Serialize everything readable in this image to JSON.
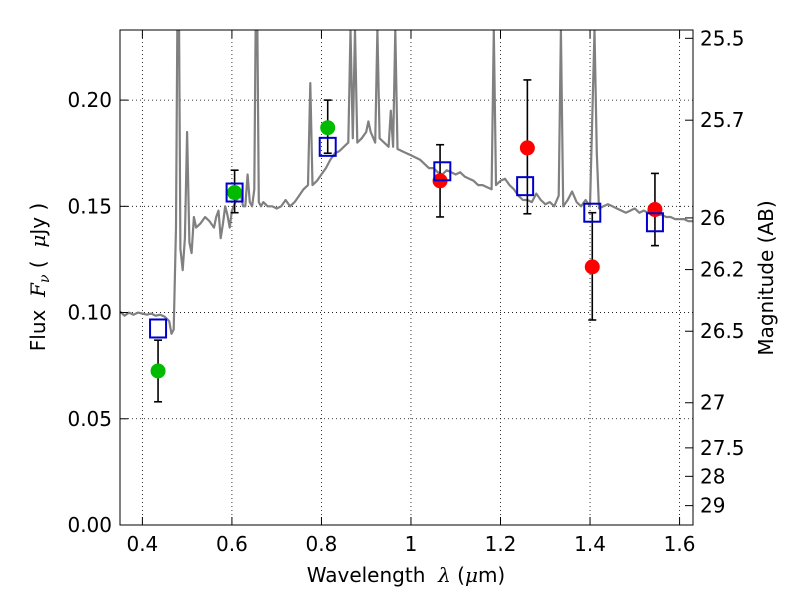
{
  "chart_data": {
    "type": "scatter",
    "xlabel": {
      "pre": "Wavelength  ",
      "sym": "λ",
      "unit": " (",
      "mu": "μ",
      "unit2": "m)"
    },
    "ylabel": {
      "pre": "Flux  ",
      "sym": "F",
      "sub": "ν",
      "post": " (  ",
      "mu": "μ",
      "post2": "Jy )"
    },
    "y2label": "Magnitude (AB)",
    "xlim": [
      0.35,
      1.63
    ],
    "ylim": [
      0.0,
      0.233
    ],
    "grid": true,
    "x_ticks": [
      {
        "v": 0.4,
        "label": "0.4"
      },
      {
        "v": 0.6,
        "label": "0.6"
      },
      {
        "v": 0.8,
        "label": "0.8"
      },
      {
        "v": 1.0,
        "label": "1"
      },
      {
        "v": 1.2,
        "label": "1.2"
      },
      {
        "v": 1.4,
        "label": "1.4"
      },
      {
        "v": 1.6,
        "label": "1.6"
      }
    ],
    "y_ticks": [
      {
        "v": 0.0,
        "label": "0.00"
      },
      {
        "v": 0.05,
        "label": "0.05"
      },
      {
        "v": 0.1,
        "label": "0.10"
      },
      {
        "v": 0.15,
        "label": "0.15"
      },
      {
        "v": 0.2,
        "label": "0.20"
      }
    ],
    "mag_ticks": [
      {
        "mag": 25.5,
        "label": "25.5"
      },
      {
        "mag": 25.7,
        "label": "25.7"
      },
      {
        "mag": 26.0,
        "label": "26"
      },
      {
        "mag": 26.2,
        "label": "26.2"
      },
      {
        "mag": 26.5,
        "label": "26.5"
      },
      {
        "mag": 27.0,
        "label": "27"
      },
      {
        "mag": 27.5,
        "label": "27.5"
      },
      {
        "mag": 28.0,
        "label": "28"
      },
      {
        "mag": 29.0,
        "label": "29"
      }
    ],
    "series": [
      {
        "marker": "circle",
        "color": "#00bb00",
        "points": [
          {
            "x": 0.435,
            "y": 0.0725,
            "yerr_low": 0.058,
            "yerr_high": 0.087
          },
          {
            "x": 0.606,
            "y": 0.1565,
            "yerr_low": 0.147,
            "yerr_high": 0.167
          },
          {
            "x": 0.814,
            "y": 0.187,
            "yerr_low": 0.175,
            "yerr_high": 0.2
          }
        ]
      },
      {
        "marker": "circle",
        "color": "#ff0000",
        "points": [
          {
            "x": 1.065,
            "y": 0.162,
            "yerr_low": 0.145,
            "yerr_high": 0.179
          },
          {
            "x": 1.26,
            "y": 0.1775,
            "yerr_low": 0.1465,
            "yerr_high": 0.2095
          },
          {
            "x": 1.405,
            "y": 0.1215,
            "yerr_low": 0.0965,
            "yerr_high": 0.147
          },
          {
            "x": 1.545,
            "y": 0.1485,
            "yerr_low": 0.1315,
            "yerr_high": 0.1655
          }
        ]
      },
      {
        "marker": "open-square",
        "color": "#0000cc",
        "points": [
          {
            "x": 0.435,
            "y": 0.0925
          },
          {
            "x": 0.606,
            "y": 0.1565
          },
          {
            "x": 0.814,
            "y": 0.178
          },
          {
            "x": 1.07,
            "y": 0.1665
          },
          {
            "x": 1.255,
            "y": 0.1595
          },
          {
            "x": 1.405,
            "y": 0.147
          },
          {
            "x": 1.545,
            "y": 0.1425
          }
        ]
      }
    ],
    "spectrum": {
      "color": "#808080",
      "points": [
        [
          0.35,
          0.1005
        ],
        [
          0.36,
          0.0985
        ],
        [
          0.37,
          0.1
        ],
        [
          0.38,
          0.099
        ],
        [
          0.39,
          0.1
        ],
        [
          0.4,
          0.0995
        ],
        [
          0.41,
          0.099
        ],
        [
          0.42,
          0.0995
        ],
        [
          0.43,
          0.0985
        ],
        [
          0.44,
          0.099
        ],
        [
          0.45,
          0.098
        ],
        [
          0.46,
          0.096
        ],
        [
          0.465,
          0.09
        ],
        [
          0.47,
          0.092
        ],
        [
          0.475,
          0.14
        ],
        [
          0.478,
          0.233
        ],
        [
          0.482,
          0.233
        ],
        [
          0.485,
          0.13
        ],
        [
          0.49,
          0.12
        ],
        [
          0.495,
          0.135
        ],
        [
          0.5,
          0.185
        ],
        [
          0.505,
          0.133
        ],
        [
          0.51,
          0.128
        ],
        [
          0.515,
          0.145
        ],
        [
          0.52,
          0.14
        ],
        [
          0.53,
          0.142
        ],
        [
          0.54,
          0.145
        ],
        [
          0.55,
          0.143
        ],
        [
          0.56,
          0.14
        ],
        [
          0.565,
          0.145
        ],
        [
          0.57,
          0.148
        ],
        [
          0.575,
          0.135
        ],
        [
          0.58,
          0.142
        ],
        [
          0.585,
          0.15
        ],
        [
          0.59,
          0.146
        ],
        [
          0.595,
          0.14
        ],
        [
          0.6,
          0.148
        ],
        [
          0.61,
          0.153
        ],
        [
          0.62,
          0.155
        ],
        [
          0.625,
          0.15
        ],
        [
          0.63,
          0.15
        ],
        [
          0.635,
          0.165
        ],
        [
          0.64,
          0.152
        ],
        [
          0.645,
          0.15
        ],
        [
          0.65,
          0.158
        ],
        [
          0.653,
          0.233
        ],
        [
          0.657,
          0.233
        ],
        [
          0.66,
          0.152
        ],
        [
          0.665,
          0.15
        ],
        [
          0.67,
          0.152
        ],
        [
          0.68,
          0.15
        ],
        [
          0.69,
          0.15
        ],
        [
          0.7,
          0.149
        ],
        [
          0.71,
          0.15
        ],
        [
          0.72,
          0.153
        ],
        [
          0.73,
          0.15
        ],
        [
          0.74,
          0.152
        ],
        [
          0.75,
          0.155
        ],
        [
          0.76,
          0.158
        ],
        [
          0.77,
          0.16
        ],
        [
          0.775,
          0.208
        ],
        [
          0.78,
          0.16
        ],
        [
          0.79,
          0.162
        ],
        [
          0.8,
          0.165
        ],
        [
          0.81,
          0.168
        ],
        [
          0.82,
          0.172
        ],
        [
          0.83,
          0.175
        ],
        [
          0.84,
          0.176
        ],
        [
          0.85,
          0.178
        ],
        [
          0.86,
          0.18
        ],
        [
          0.865,
          0.233
        ],
        [
          0.87,
          0.182
        ],
        [
          0.875,
          0.233
        ],
        [
          0.88,
          0.18
        ],
        [
          0.89,
          0.182
        ],
        [
          0.9,
          0.185
        ],
        [
          0.905,
          0.19
        ],
        [
          0.91,
          0.185
        ],
        [
          0.92,
          0.18
        ],
        [
          0.925,
          0.233
        ],
        [
          0.93,
          0.182
        ],
        [
          0.94,
          0.18
        ],
        [
          0.95,
          0.178
        ],
        [
          0.955,
          0.195
        ],
        [
          0.96,
          0.178
        ],
        [
          0.965,
          0.233
        ],
        [
          0.97,
          0.177
        ],
        [
          0.98,
          0.176
        ],
        [
          0.99,
          0.175
        ],
        [
          1.0,
          0.174
        ],
        [
          1.01,
          0.173
        ],
        [
          1.02,
          0.172
        ],
        [
          1.03,
          0.17
        ],
        [
          1.04,
          0.168
        ],
        [
          1.05,
          0.168
        ],
        [
          1.06,
          0.166
        ],
        [
          1.07,
          0.165
        ],
        [
          1.08,
          0.167
        ],
        [
          1.09,
          0.166
        ],
        [
          1.1,
          0.165
        ],
        [
          1.11,
          0.166
        ],
        [
          1.12,
          0.164
        ],
        [
          1.13,
          0.163
        ],
        [
          1.14,
          0.162
        ],
        [
          1.15,
          0.16
        ],
        [
          1.16,
          0.16
        ],
        [
          1.17,
          0.159
        ],
        [
          1.18,
          0.158
        ],
        [
          1.185,
          0.233
        ],
        [
          1.19,
          0.16
        ],
        [
          1.2,
          0.162
        ],
        [
          1.21,
          0.163
        ],
        [
          1.22,
          0.16
        ],
        [
          1.23,
          0.158
        ],
        [
          1.24,
          0.155
        ],
        [
          1.25,
          0.153
        ],
        [
          1.26,
          0.153
        ],
        [
          1.27,
          0.152
        ],
        [
          1.28,
          0.156
        ],
        [
          1.29,
          0.153
        ],
        [
          1.3,
          0.151
        ],
        [
          1.31,
          0.152
        ],
        [
          1.32,
          0.15
        ],
        [
          1.33,
          0.155
        ],
        [
          1.335,
          0.233
        ],
        [
          1.34,
          0.15
        ],
        [
          1.35,
          0.153
        ],
        [
          1.36,
          0.157
        ],
        [
          1.37,
          0.152
        ],
        [
          1.38,
          0.15
        ],
        [
          1.39,
          0.153
        ],
        [
          1.4,
          0.15
        ],
        [
          1.41,
          0.233
        ],
        [
          1.415,
          0.175
        ],
        [
          1.42,
          0.149
        ],
        [
          1.43,
          0.15
        ],
        [
          1.44,
          0.151
        ],
        [
          1.45,
          0.15
        ],
        [
          1.46,
          0.149
        ],
        [
          1.47,
          0.148
        ],
        [
          1.48,
          0.147
        ],
        [
          1.49,
          0.148
        ],
        [
          1.5,
          0.149
        ],
        [
          1.51,
          0.147
        ],
        [
          1.52,
          0.148
        ],
        [
          1.53,
          0.147
        ],
        [
          1.54,
          0.147
        ],
        [
          1.55,
          0.146
        ],
        [
          1.56,
          0.146
        ],
        [
          1.57,
          0.145
        ],
        [
          1.58,
          0.145
        ],
        [
          1.59,
          0.144
        ],
        [
          1.6,
          0.144
        ],
        [
          1.61,
          0.144
        ],
        [
          1.62,
          0.143
        ],
        [
          1.63,
          0.143
        ]
      ]
    }
  }
}
